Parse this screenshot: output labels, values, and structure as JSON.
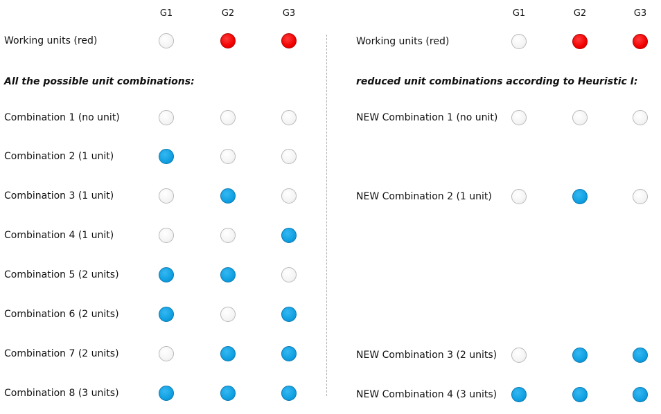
{
  "left": {
    "headers": [
      "G1",
      "G2",
      "G3"
    ],
    "working_units": {
      "label": "Working units (red)",
      "states": [
        "off",
        "red",
        "red"
      ]
    },
    "section_title": "All the possible unit combinations:",
    "combinations": [
      {
        "label": "Combination 1 (no unit)",
        "states": [
          "off",
          "off",
          "off"
        ]
      },
      {
        "label": "Combination 2 (1 unit)",
        "states": [
          "on",
          "off",
          "off"
        ]
      },
      {
        "label": "Combination 3 (1 unit)",
        "states": [
          "off",
          "on",
          "off"
        ]
      },
      {
        "label": "Combination 4 (1 unit)",
        "states": [
          "off",
          "off",
          "on"
        ]
      },
      {
        "label": "Combination 5 (2 units)",
        "states": [
          "on",
          "on",
          "off"
        ]
      },
      {
        "label": "Combination 6 (2 units)",
        "states": [
          "on",
          "off",
          "on"
        ]
      },
      {
        "label": "Combination 7 (2 units)",
        "states": [
          "off",
          "on",
          "on"
        ]
      },
      {
        "label": "Combination 8 (3 units)",
        "states": [
          "on",
          "on",
          "on"
        ]
      }
    ]
  },
  "right": {
    "headers": [
      "G1",
      "G2",
      "G3"
    ],
    "working_units": {
      "label": "Working units (red)",
      "states": [
        "off",
        "red",
        "red"
      ]
    },
    "section_title": "reduced unit combinations according to Heuristic I:",
    "combinations": [
      {
        "label": "NEW Combination 1 (no unit)",
        "states": [
          "off",
          "off",
          "off"
        ]
      },
      {
        "label": "NEW Combination 2 (1 unit)",
        "states": [
          "off",
          "on",
          "off"
        ]
      },
      {
        "label": "NEW Combination 3 (2 units)",
        "states": [
          "off",
          "on",
          "on"
        ]
      },
      {
        "label": "NEW Combination 4 (3 units)",
        "states": [
          "on",
          "on",
          "on"
        ]
      }
    ]
  },
  "colors": {
    "active": "#10a0e2",
    "working": "#f20000",
    "inactive": "#f4f4f4"
  }
}
